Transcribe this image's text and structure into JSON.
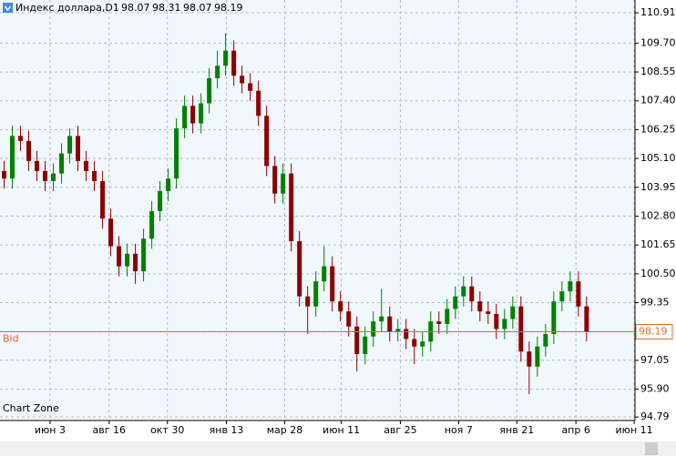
{
  "chart_data": {
    "type": "candlestick",
    "title": "Индекс доллара,D1",
    "quote": {
      "open": 98.07,
      "high": 98.31,
      "low": 98.07,
      "close": 98.19
    },
    "bid": {
      "label": "Bid",
      "value": 98.19
    },
    "watermark": "Chart Zone",
    "up_color": "#008000",
    "down_color": "#8b0000",
    "bid_color": "#e06a2c",
    "grid": true,
    "ylim": [
      94.65,
      111.42
    ],
    "yticks": [
      110.91,
      {
        "value": 109.7,
        "label": "109.70"
      },
      108.55,
      {
        "value": 107.4,
        "label": "107.40"
      },
      106.25,
      {
        "value": 105.1,
        "label": "105.10"
      },
      103.95,
      {
        "value": 102.8,
        "label": "102.80"
      },
      101.65,
      {
        "value": 100.5,
        "label": "100.50"
      },
      99.35,
      {
        "value": 98.2,
        "label": "98.20"
      },
      97.05,
      {
        "value": 95.9,
        "label": "95.90"
      },
      94.79
    ],
    "xlim": [
      0,
      77.4
    ],
    "xticks": [
      {
        "value": 6.1,
        "label": "июн 3"
      },
      {
        "value": 13.3,
        "label": "авг 16"
      },
      {
        "value": 20.4,
        "label": "окт 30"
      },
      {
        "value": 27.6,
        "label": "янв 13"
      },
      {
        "value": 34.7,
        "label": "мар 28"
      },
      {
        "value": 41.6,
        "label": "июн 11"
      },
      {
        "value": 48.8,
        "label": "авг 25"
      },
      {
        "value": 55.9,
        "label": "ноя 7"
      },
      {
        "value": 63.0,
        "label": "янв 21"
      },
      {
        "value": 70.2,
        "label": "апр 6"
      },
      {
        "value": 77.3,
        "label": "июн 11"
      }
    ],
    "open": [
      104.6,
      104.3,
      106.0,
      105.8,
      105.0,
      104.6,
      104.2,
      104.5,
      105.3,
      106.0,
      105.0,
      104.6,
      104.2,
      102.7,
      101.6,
      100.8,
      101.3,
      100.6,
      101.9,
      103.0,
      103.8,
      104.3,
      106.3,
      107.2,
      106.5,
      107.3,
      108.3,
      108.8,
      109.4,
      108.4,
      108.1,
      107.8,
      106.8,
      104.8,
      103.7,
      104.5,
      101.8,
      99.6,
      99.2,
      100.2,
      100.8,
      99.4,
      99.0,
      98.4,
      97.3,
      98.0,
      98.6,
      98.8,
      98.2,
      98.3,
      97.9,
      97.6,
      97.8,
      98.6,
      98.5,
      99.1,
      99.6,
      100.0,
      99.4,
      99.0,
      98.9,
      98.3,
      98.7,
      99.2,
      97.4,
      96.8,
      97.6,
      98.1,
      99.4,
      99.8,
      100.2,
      99.2
    ],
    "high": [
      105.0,
      106.4,
      106.4,
      106.2,
      105.4,
      105.0,
      104.9,
      105.7,
      106.3,
      106.4,
      105.4,
      105.0,
      104.6,
      103.1,
      102.0,
      101.7,
      101.7,
      102.3,
      103.4,
      104.2,
      104.7,
      106.7,
      107.6,
      107.6,
      107.7,
      108.7,
      109.4,
      110.1,
      109.8,
      108.8,
      108.5,
      108.2,
      107.2,
      105.2,
      104.9,
      104.9,
      102.2,
      100.0,
      100.6,
      101.6,
      101.2,
      99.8,
      99.4,
      98.8,
      98.4,
      99.0,
      99.9,
      99.2,
      98.7,
      98.7,
      98.3,
      98.2,
      99.0,
      99.0,
      99.5,
      100.0,
      100.4,
      100.4,
      99.8,
      99.4,
      99.3,
      99.1,
      99.6,
      99.6,
      97.8,
      98.0,
      98.5,
      99.8,
      100.2,
      100.6,
      100.6,
      99.6
    ],
    "low": [
      103.9,
      103.9,
      105.4,
      104.6,
      104.2,
      103.8,
      103.8,
      104.1,
      104.9,
      104.6,
      104.2,
      103.8,
      102.3,
      101.2,
      100.4,
      100.4,
      100.1,
      100.2,
      101.5,
      102.6,
      103.4,
      103.9,
      105.9,
      106.1,
      106.1,
      106.9,
      107.9,
      108.4,
      108.0,
      107.7,
      107.4,
      106.4,
      104.4,
      103.3,
      103.3,
      101.4,
      99.2,
      98.1,
      98.8,
      99.8,
      99.0,
      98.6,
      98.0,
      96.6,
      96.9,
      97.6,
      98.2,
      97.8,
      97.8,
      97.5,
      96.9,
      97.2,
      97.4,
      98.1,
      98.1,
      98.7,
      99.2,
      99.0,
      98.6,
      98.5,
      97.9,
      97.9,
      98.3,
      97.0,
      95.7,
      96.4,
      97.2,
      97.7,
      99.0,
      99.4,
      98.8,
      97.8
    ],
    "close": [
      104.3,
      106.0,
      105.8,
      105.0,
      104.6,
      104.2,
      104.5,
      105.3,
      106.0,
      105.0,
      104.6,
      104.2,
      102.7,
      101.6,
      100.8,
      101.3,
      100.6,
      101.9,
      103.0,
      103.8,
      104.3,
      106.3,
      107.2,
      106.5,
      107.3,
      108.3,
      108.8,
      109.4,
      108.4,
      108.1,
      107.8,
      106.8,
      104.8,
      103.7,
      104.5,
      101.8,
      99.6,
      99.2,
      100.2,
      100.8,
      99.4,
      99.0,
      98.4,
      97.3,
      98.0,
      98.6,
      98.8,
      98.2,
      98.3,
      97.9,
      97.6,
      97.8,
      98.6,
      98.5,
      99.1,
      99.6,
      100.0,
      99.4,
      99.0,
      98.9,
      98.3,
      98.7,
      99.2,
      97.4,
      96.8,
      97.6,
      98.1,
      99.4,
      99.8,
      100.2,
      99.2,
      98.19
    ]
  }
}
